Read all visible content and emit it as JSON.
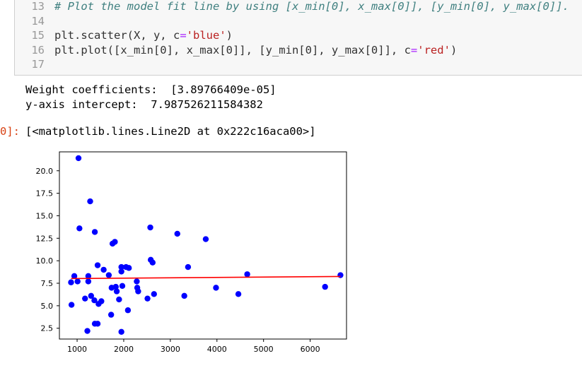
{
  "code": {
    "lines": [
      {
        "num": "13",
        "comment": "# Plot the model fit line by using [x_min[0], x_max[0]], [y_min[0], y_max[0]]."
      },
      {
        "num": "14"
      },
      {
        "num": "15",
        "pre": "plt.scatter(X, y, c",
        "op": "=",
        "str": "'blue'",
        "post": ")"
      },
      {
        "num": "16",
        "pre": "plt.plot([x_min[0], x_max[0]], [y_min[0], y_max[0]], c",
        "op": "=",
        "str": "'red'",
        "post": ")"
      },
      {
        "num": "17"
      }
    ]
  },
  "output": {
    "weight_line": "Weight coefficients:  [3.89766409e-05]",
    "intercept_line": "y-axis intercept:  7.987526211584382",
    "prompt_fragment": "0]:",
    "repr_line": "[<matplotlib.lines.Line2D at 0x222c16aca00>]"
  },
  "chart_data": {
    "type": "scatter",
    "xlim": [
      620,
      6780
    ],
    "ylim": [
      1.3,
      22.1
    ],
    "xticks": [
      1000,
      2000,
      3000,
      4000,
      5000,
      6000
    ],
    "yticks": [
      2.5,
      5.0,
      7.5,
      10.0,
      12.5,
      15.0,
      17.5,
      20.0
    ],
    "xtick_labels": [
      "1000",
      "2000",
      "3000",
      "4000",
      "5000",
      "6000"
    ],
    "ytick_labels": [
      "2.5",
      "5.0",
      "7.5",
      "10.0",
      "12.5",
      "15.0",
      "17.5",
      "20.0"
    ],
    "grid": false,
    "point_color": "#0000ff",
    "line_color": "#ff0000",
    "points": [
      [
        1030,
        21.4
      ],
      [
        1280,
        16.6
      ],
      [
        1050,
        13.6
      ],
      [
        1380,
        13.2
      ],
      [
        1760,
        11.9
      ],
      [
        1810,
        12.1
      ],
      [
        2570,
        13.7
      ],
      [
        3150,
        13.0
      ],
      [
        3760,
        12.4
      ],
      [
        2580,
        10.1
      ],
      [
        2620,
        9.8
      ],
      [
        3380,
        9.3
      ],
      [
        1440,
        9.5
      ],
      [
        1570,
        9.0
      ],
      [
        1950,
        9.3
      ],
      [
        2050,
        9.3
      ],
      [
        2110,
        9.2
      ],
      [
        1950,
        8.8
      ],
      [
        1680,
        8.4
      ],
      [
        4650,
        8.5
      ],
      [
        6650,
        8.4
      ],
      [
        940,
        8.3
      ],
      [
        1240,
        8.3
      ],
      [
        1010,
        7.7
      ],
      [
        870,
        7.6
      ],
      [
        1240,
        7.7
      ],
      [
        2280,
        7.7
      ],
      [
        1740,
        7.0
      ],
      [
        1830,
        7.1
      ],
      [
        1970,
        7.2
      ],
      [
        2290,
        7.0
      ],
      [
        1850,
        6.6
      ],
      [
        2310,
        6.6
      ],
      [
        3980,
        7.0
      ],
      [
        6320,
        7.1
      ],
      [
        1300,
        6.1
      ],
      [
        2650,
        6.3
      ],
      [
        3300,
        6.1
      ],
      [
        4460,
        6.3
      ],
      [
        1170,
        5.8
      ],
      [
        1370,
        5.6
      ],
      [
        1520,
        5.5
      ],
      [
        1900,
        5.7
      ],
      [
        2510,
        5.8
      ],
      [
        1460,
        5.2
      ],
      [
        880,
        5.1
      ],
      [
        2090,
        4.5
      ],
      [
        1730,
        4.0
      ],
      [
        1380,
        3.0
      ],
      [
        1440,
        3.0
      ],
      [
        1220,
        2.2
      ],
      [
        1950,
        2.1
      ]
    ],
    "fit_line": {
      "x": [
        870,
        6650
      ],
      "y": [
        8.02,
        8.25
      ]
    }
  }
}
